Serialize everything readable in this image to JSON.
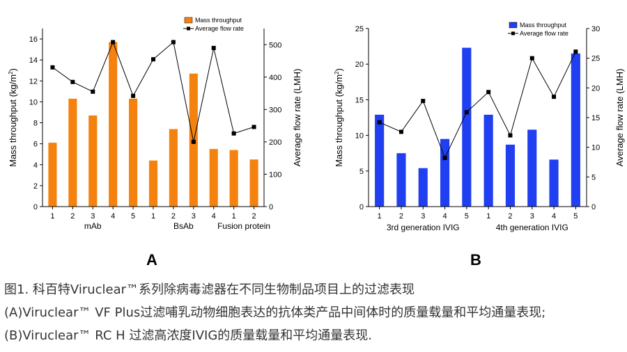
{
  "chart_data": [
    {
      "type": "bar+line",
      "panel_label": "A",
      "categories": [
        "1",
        "2",
        "3",
        "4",
        "5",
        "1",
        "2",
        "3",
        "4",
        "1",
        "2"
      ],
      "groups": [
        {
          "label": "mAb",
          "count": 5
        },
        {
          "label": "BsAb",
          "count": 4
        },
        {
          "label": "Fusion protein",
          "count": 2
        }
      ],
      "series": [
        {
          "name": "Mass throughput",
          "kind": "bar",
          "axis": "left",
          "color": "#f5820f",
          "values": [
            6.1,
            10.3,
            8.7,
            15.7,
            10.3,
            4.4,
            7.4,
            12.7,
            5.5,
            5.4,
            4.5
          ]
        },
        {
          "name": "Average flow rate",
          "kind": "line",
          "axis": "right",
          "color": "#000000",
          "values": [
            430,
            385,
            355,
            508,
            342,
            455,
            508,
            200,
            490,
            226,
            246
          ]
        }
      ],
      "ylabel": "Mass throughput (kg/m²)",
      "ylabel_right": "Average flow rate (LMH)",
      "ylim": [
        0,
        17
      ],
      "yticks": [
        "0",
        "2",
        "4",
        "6",
        "8",
        "10",
        "12",
        "14",
        "16"
      ],
      "ylim_right": [
        0,
        550
      ],
      "yticks_right": [
        "0",
        "100",
        "200",
        "300",
        "400",
        "500"
      ],
      "legend_position": "top-right"
    },
    {
      "type": "bar+line",
      "panel_label": "B",
      "categories": [
        "1",
        "2",
        "3",
        "4",
        "5",
        "1",
        "2",
        "3",
        "4",
        "5"
      ],
      "groups": [
        {
          "label": "3rd generation IVIG",
          "count": 5
        },
        {
          "label": "4th generation IVIG",
          "count": 5
        }
      ],
      "series": [
        {
          "name": "Mass throughput",
          "kind": "bar",
          "axis": "left",
          "color": "#1f3ff0",
          "values": [
            12.9,
            7.5,
            5.4,
            9.5,
            22.3,
            12.9,
            8.7,
            10.8,
            6.6,
            21.5
          ]
        },
        {
          "name": "Average flow rate",
          "kind": "line",
          "axis": "right",
          "color": "#000000",
          "values": [
            14.2,
            12.6,
            17.8,
            8.2,
            15.9,
            19.3,
            12.0,
            25.0,
            18.5,
            26.1
          ]
        }
      ],
      "ylabel": "Mass throughput (kg/m²)",
      "ylabel_right": "Average flow rate (LMH)",
      "ylim": [
        0,
        25
      ],
      "yticks": [
        "0",
        "5",
        "10",
        "15",
        "20",
        "25"
      ],
      "ylim_right": [
        0,
        30
      ],
      "yticks_right": [
        "0",
        "5",
        "10",
        "15",
        "20",
        "25",
        "30"
      ],
      "legend_position": "top-right"
    }
  ],
  "caption": {
    "line1": "图1. 科百特Viruclear™系列除病毒滤器在不同生物制品项目上的过滤表现",
    "line2": "(A)Viruclear™ VF Plus过滤哺乳动物细胞表达的抗体类产品中间体时的质量载量和平均通量表现;",
    "line3": "(B)Viruclear™ RC H 过滤高浓度IVIG的质量载量和平均通量表现."
  }
}
